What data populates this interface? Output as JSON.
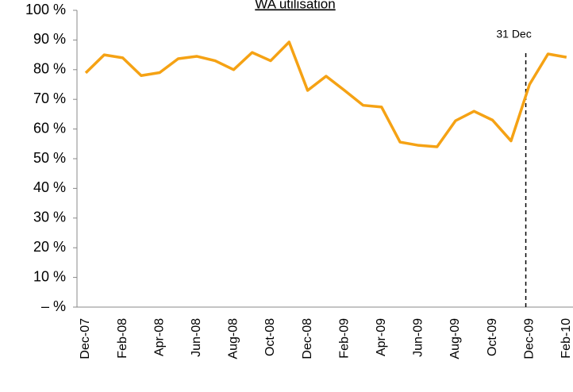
{
  "chart_data": {
    "type": "line",
    "title": "WA utilisation",
    "categories": [
      "Dec-07",
      null,
      "Feb-08",
      null,
      "Apr-08",
      null,
      "Jun-08",
      null,
      "Aug-08",
      null,
      "Oct-08",
      null,
      "Dec-08",
      null,
      "Feb-09",
      null,
      "Apr-09",
      null,
      "Jun-09",
      null,
      "Aug-09",
      null,
      "Oct-09",
      null,
      "Dec-09",
      null,
      "Feb-10"
    ],
    "series": [
      {
        "name": "WA utilisation",
        "color": "#f5a214",
        "values": [
          78.9,
          85,
          84,
          78,
          79,
          83.7,
          84.5,
          83,
          80,
          85.8,
          83,
          89.3,
          73,
          77.8,
          73,
          68,
          67.4,
          55.6,
          54.5,
          54,
          62.8,
          66,
          63,
          56,
          75,
          85.3,
          84.2
        ]
      }
    ],
    "ylim": [
      0,
      100
    ],
    "yticks": [
      {
        "value": 0,
        "label": "– %"
      },
      {
        "value": 10,
        "label": "10 %"
      },
      {
        "value": 20,
        "label": "20 %"
      },
      {
        "value": 30,
        "label": "30 %"
      },
      {
        "value": 40,
        "label": "40 %"
      },
      {
        "value": 50,
        "label": "50 %"
      },
      {
        "value": 60,
        "label": "60 %"
      },
      {
        "value": 70,
        "label": "70 %"
      },
      {
        "value": 80,
        "label": "80 %"
      },
      {
        "value": 90,
        "label": "90 %"
      },
      {
        "value": 100,
        "label": "100 %"
      }
    ],
    "annotations": [
      {
        "text": "31 Dec"
      }
    ],
    "grid": false
  }
}
